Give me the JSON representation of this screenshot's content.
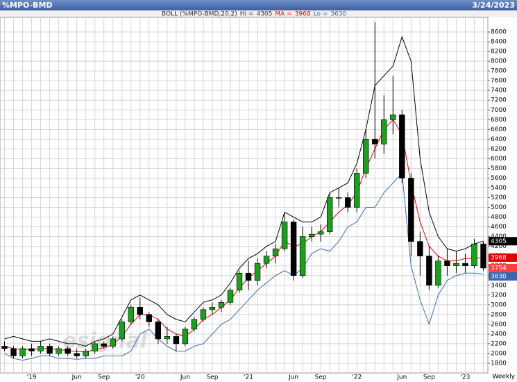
{
  "chart_data": {
    "type": "candlestick",
    "title": "%MPO-BMD",
    "date": "3/24/2023",
    "indicator": "BOLL (%MPO-BMD,20,2)",
    "xlabel": "Weekly",
    "watermark": "esignal",
    "categories": [
      null,
      null,
      null,
      "'19",
      null,
      null,
      null,
      null,
      "Jun",
      null,
      null,
      "Sep",
      null,
      null,
      null,
      "'20",
      null,
      null,
      null,
      null,
      "Jun",
      null,
      null,
      "Sep",
      null,
      null,
      null,
      "'21",
      null,
      null,
      null,
      null,
      "Jun",
      null,
      null,
      "Sep",
      null,
      null,
      null,
      "'22",
      null,
      null,
      null,
      null,
      "Jun",
      null,
      null,
      "Sep",
      null,
      null,
      null,
      "'23",
      null,
      null
    ],
    "open": [
      2150,
      2100,
      1950,
      2100,
      2050,
      2150,
      2000,
      2100,
      2000,
      1950,
      2050,
      2200,
      2150,
      2300,
      2650,
      2950,
      2800,
      2650,
      2300,
      2350,
      2200,
      2500,
      2700,
      2900,
      2950,
      3050,
      3300,
      3650,
      3500,
      3850,
      4000,
      4150,
      4700,
      3600,
      4400,
      4450,
      4500,
      5200,
      5200,
      5000,
      5700,
      6400,
      6300,
      6800,
      6900,
      5600,
      4300,
      4000,
      3400,
      3900,
      3800,
      3850,
      3800,
      4250
    ],
    "high": [
      2250,
      2150,
      2150,
      2200,
      2250,
      2200,
      2150,
      2150,
      2100,
      2100,
      2250,
      2250,
      2350,
      2700,
      3000,
      3150,
      2850,
      2700,
      2550,
      2400,
      2550,
      2750,
      2950,
      3050,
      3100,
      3350,
      3700,
      3900,
      3950,
      4100,
      4250,
      4900,
      4750,
      4600,
      4600,
      4650,
      5300,
      5400,
      5300,
      5800,
      6600,
      8800,
      7300,
      7700,
      7000,
      5700,
      4500,
      4200,
      4000,
      4150,
      4100,
      4050,
      4350,
      4300
    ],
    "low": [
      2050,
      1900,
      1900,
      1950,
      2000,
      1950,
      1950,
      1950,
      1900,
      1900,
      2000,
      2100,
      2100,
      2250,
      2600,
      2700,
      2550,
      2200,
      2200,
      2050,
      2150,
      2450,
      2650,
      2800,
      2850,
      3000,
      3250,
      3300,
      3400,
      3750,
      3850,
      4100,
      3500,
      3550,
      4300,
      4300,
      4450,
      5000,
      4900,
      4900,
      5600,
      6000,
      6100,
      6500,
      5500,
      4000,
      3600,
      3300,
      3350,
      3600,
      3650,
      3650,
      3750,
      3700
    ],
    "close": [
      2100,
      1950,
      2100,
      2050,
      2150,
      2000,
      2100,
      2000,
      1950,
      2050,
      2200,
      2150,
      2300,
      2650,
      2950,
      2800,
      2650,
      2300,
      2350,
      2200,
      2500,
      2700,
      2900,
      2950,
      3050,
      3300,
      3650,
      3500,
      3850,
      4000,
      4150,
      4700,
      3600,
      4400,
      4450,
      4500,
      5200,
      5200,
      5000,
      5700,
      6400,
      6300,
      6800,
      6900,
      5600,
      4300,
      4000,
      3400,
      3900,
      3800,
      3850,
      3800,
      4250,
      3754
    ],
    "up_color": "#1e9e1e",
    "down_color": "#000000",
    "close_color": "#ff4040",
    "series": [
      {
        "name": "Hi =",
        "color": "#000000",
        "values": [
          2300,
          2350,
          2300,
          2250,
          2250,
          2300,
          2250,
          2200,
          2200,
          2150,
          2250,
          2300,
          2400,
          2750,
          3100,
          3200,
          3100,
          3000,
          2800,
          2700,
          2650,
          2850,
          3050,
          3100,
          3200,
          3450,
          3750,
          3950,
          4050,
          4200,
          4300,
          4900,
          4800,
          4700,
          4700,
          4800,
          5300,
          5400,
          5500,
          5900,
          6600,
          7500,
          7700,
          7900,
          8500,
          8000,
          6000,
          4900,
          4400,
          4150,
          4100,
          4150,
          4250,
          4305
        ]
      },
      {
        "name": "MA =",
        "color": "#e00000",
        "values": [
          2150,
          2100,
          2080,
          2080,
          2100,
          2100,
          2080,
          2060,
          2040,
          2030,
          2080,
          2120,
          2180,
          2350,
          2600,
          2800,
          2800,
          2700,
          2500,
          2400,
          2350,
          2500,
          2700,
          2800,
          2950,
          3100,
          3350,
          3550,
          3700,
          3850,
          4000,
          4300,
          4200,
          4250,
          4400,
          4500,
          4700,
          4900,
          5050,
          5300,
          5800,
          6200,
          6600,
          6800,
          6500,
          5500,
          4700,
          4200,
          4000,
          3900,
          3900,
          3950,
          3950,
          3968
        ]
      },
      {
        "name": "Lo =",
        "color": "#3a68b0",
        "values": [
          2000,
          1900,
          1860,
          1900,
          1950,
          1950,
          1900,
          1900,
          1880,
          1900,
          1900,
          1950,
          1950,
          1950,
          2050,
          2400,
          2500,
          2300,
          2150,
          2050,
          2050,
          2150,
          2200,
          2400,
          2600,
          2700,
          2900,
          3100,
          3300,
          3450,
          3600,
          3700,
          3600,
          3750,
          4050,
          4150,
          4100,
          4300,
          4600,
          4700,
          5000,
          5000,
          5300,
          5500,
          5700,
          3800,
          3100,
          2600,
          3200,
          3500,
          3600,
          3650,
          3650,
          3630
        ]
      }
    ],
    "ylim": [
      1600,
      8900
    ],
    "yticks": [
      1800,
      2000,
      2200,
      2400,
      2600,
      2800,
      3000,
      3200,
      3400,
      3600,
      3800,
      4000,
      4200,
      4400,
      4600,
      4800,
      5000,
      5200,
      5400,
      5600,
      5800,
      6000,
      6200,
      6400,
      6600,
      6800,
      7000,
      7200,
      7400,
      7600,
      7800,
      8000,
      8200,
      8400,
      8600
    ],
    "grid": true
  }
}
